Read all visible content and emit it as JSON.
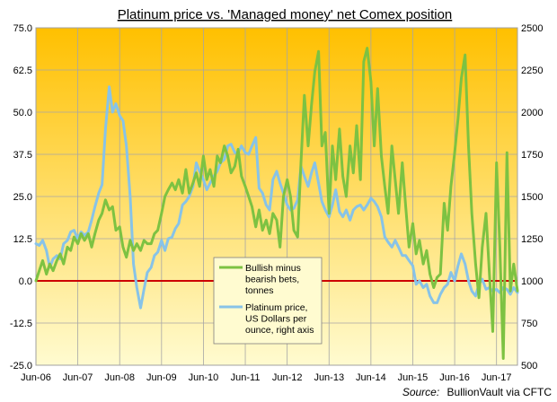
{
  "chart_data": {
    "type": "line",
    "title": "Platinum price vs. 'Managed money' net Comex position",
    "source_label": "Source:",
    "source_text": "BullionVault via CFTC",
    "x_categories": [
      "Jun-06",
      "Jun-07",
      "Jun-08",
      "Jun-09",
      "Jun-10",
      "Jun-11",
      "Jun-12",
      "Jun-13",
      "Jun-14",
      "Jun-15",
      "Jun-16",
      "Jun-17"
    ],
    "x_range": [
      2006.42,
      2017.92
    ],
    "left_axis": {
      "ylim": [
        -25,
        75
      ],
      "ticks": [
        "-25.0",
        "-12.5",
        "0.0",
        "12.5",
        "25.0",
        "37.5",
        "50.0",
        "62.5",
        "75.0"
      ],
      "tick_values": [
        -25,
        -12.5,
        0,
        12.5,
        25,
        37.5,
        50,
        62.5,
        75
      ]
    },
    "right_axis": {
      "ylim": [
        500,
        2500
      ],
      "ticks": [
        "500",
        "750",
        "1000",
        "1250",
        "1500",
        "1750",
        "2000",
        "2250",
        "2500"
      ],
      "tick_values": [
        500,
        750,
        1000,
        1250,
        1500,
        1750,
        2000,
        2250,
        2500
      ]
    },
    "zero_line_color": "#cc0000",
    "grid": true,
    "legend_position": "center-bottom",
    "background_gradient": [
      "#ffc000",
      "#fffbd0"
    ],
    "series": [
      {
        "name": "Bullish minus bearish bets, tonnes",
        "legend_lines": [
          "Bullish minus",
          "bearish bets,",
          "tonnes"
        ],
        "axis": "left",
        "color": "#7dc242",
        "points": [
          [
            2006.42,
            0
          ],
          [
            2006.5,
            3
          ],
          [
            2006.58,
            6
          ],
          [
            2006.67,
            2
          ],
          [
            2006.75,
            5
          ],
          [
            2006.83,
            3
          ],
          [
            2006.92,
            6
          ],
          [
            2007.0,
            8
          ],
          [
            2007.08,
            5
          ],
          [
            2007.17,
            10
          ],
          [
            2007.25,
            9
          ],
          [
            2007.33,
            13
          ],
          [
            2007.42,
            11
          ],
          [
            2007.5,
            14
          ],
          [
            2007.58,
            12
          ],
          [
            2007.67,
            14
          ],
          [
            2007.75,
            10
          ],
          [
            2007.83,
            14
          ],
          [
            2007.92,
            18
          ],
          [
            2008.0,
            20
          ],
          [
            2008.08,
            24
          ],
          [
            2008.17,
            21
          ],
          [
            2008.25,
            22
          ],
          [
            2008.33,
            15
          ],
          [
            2008.42,
            16
          ],
          [
            2008.5,
            10
          ],
          [
            2008.58,
            7
          ],
          [
            2008.67,
            12
          ],
          [
            2008.75,
            9
          ],
          [
            2008.83,
            11
          ],
          [
            2008.92,
            9
          ],
          [
            2009.0,
            12
          ],
          [
            2009.08,
            11
          ],
          [
            2009.17,
            11
          ],
          [
            2009.25,
            14
          ],
          [
            2009.33,
            15
          ],
          [
            2009.42,
            20
          ],
          [
            2009.5,
            25
          ],
          [
            2009.58,
            27
          ],
          [
            2009.67,
            29
          ],
          [
            2009.75,
            27
          ],
          [
            2009.83,
            30
          ],
          [
            2009.92,
            26
          ],
          [
            2010.0,
            33
          ],
          [
            2010.08,
            26
          ],
          [
            2010.17,
            29
          ],
          [
            2010.25,
            32
          ],
          [
            2010.33,
            28
          ],
          [
            2010.42,
            37
          ],
          [
            2010.5,
            30
          ],
          [
            2010.58,
            33
          ],
          [
            2010.67,
            28
          ],
          [
            2010.75,
            37
          ],
          [
            2010.83,
            35
          ],
          [
            2010.92,
            40
          ],
          [
            2011.0,
            37
          ],
          [
            2011.08,
            32
          ],
          [
            2011.17,
            34
          ],
          [
            2011.25,
            39
          ],
          [
            2011.33,
            31
          ],
          [
            2011.42,
            28
          ],
          [
            2011.5,
            25
          ],
          [
            2011.58,
            22
          ],
          [
            2011.67,
            16
          ],
          [
            2011.75,
            21
          ],
          [
            2011.83,
            15
          ],
          [
            2011.92,
            18
          ],
          [
            2012.0,
            14
          ],
          [
            2012.08,
            20
          ],
          [
            2012.17,
            18
          ],
          [
            2012.25,
            10
          ],
          [
            2012.33,
            25
          ],
          [
            2012.42,
            30
          ],
          [
            2012.5,
            25
          ],
          [
            2012.58,
            15
          ],
          [
            2012.67,
            13
          ],
          [
            2012.75,
            35
          ],
          [
            2012.83,
            55
          ],
          [
            2012.92,
            40
          ],
          [
            2013.0,
            52
          ],
          [
            2013.08,
            62
          ],
          [
            2013.17,
            68
          ],
          [
            2013.25,
            40
          ],
          [
            2013.33,
            44
          ],
          [
            2013.42,
            20
          ],
          [
            2013.5,
            40
          ],
          [
            2013.58,
            30
          ],
          [
            2013.67,
            45
          ],
          [
            2013.75,
            31
          ],
          [
            2013.83,
            25
          ],
          [
            2013.92,
            40
          ],
          [
            2014.0,
            32
          ],
          [
            2014.08,
            46
          ],
          [
            2014.17,
            30
          ],
          [
            2014.25,
            65
          ],
          [
            2014.33,
            69
          ],
          [
            2014.42,
            59
          ],
          [
            2014.5,
            40
          ],
          [
            2014.58,
            57
          ],
          [
            2014.67,
            37
          ],
          [
            2014.75,
            28
          ],
          [
            2014.83,
            20
          ],
          [
            2014.92,
            40
          ],
          [
            2015.0,
            30
          ],
          [
            2015.08,
            20
          ],
          [
            2015.17,
            35
          ],
          [
            2015.25,
            22
          ],
          [
            2015.33,
            10
          ],
          [
            2015.42,
            17
          ],
          [
            2015.5,
            8
          ],
          [
            2015.58,
            12
          ],
          [
            2015.67,
            5
          ],
          [
            2015.75,
            9
          ],
          [
            2015.83,
            2
          ],
          [
            2015.92,
            -2
          ],
          [
            2016.0,
            1
          ],
          [
            2016.08,
            2
          ],
          [
            2016.17,
            23
          ],
          [
            2016.25,
            15
          ],
          [
            2016.33,
            28
          ],
          [
            2016.42,
            38
          ],
          [
            2016.5,
            48
          ],
          [
            2016.58,
            60
          ],
          [
            2016.67,
            67
          ],
          [
            2016.75,
            40
          ],
          [
            2016.83,
            20
          ],
          [
            2016.92,
            5
          ],
          [
            2017.0,
            -5
          ],
          [
            2017.08,
            10
          ],
          [
            2017.17,
            20
          ],
          [
            2017.25,
            2
          ],
          [
            2017.33,
            -15
          ],
          [
            2017.42,
            35
          ],
          [
            2017.5,
            10
          ],
          [
            2017.58,
            -23
          ],
          [
            2017.67,
            38
          ],
          [
            2017.75,
            -3
          ],
          [
            2017.83,
            5
          ],
          [
            2017.92,
            -3
          ]
        ]
      },
      {
        "name": "Platinum price, US Dollars per ounce, right axis",
        "legend_lines": [
          "Platinum price,",
          "US Dollars per",
          "ounce, right axis"
        ],
        "axis": "right",
        "color": "#87c3e8",
        "points": [
          [
            2006.42,
            1220
          ],
          [
            2006.5,
            1210
          ],
          [
            2006.58,
            1240
          ],
          [
            2006.67,
            1180
          ],
          [
            2006.75,
            1080
          ],
          [
            2006.83,
            1130
          ],
          [
            2006.92,
            1150
          ],
          [
            2007.0,
            1130
          ],
          [
            2007.08,
            1220
          ],
          [
            2007.17,
            1240
          ],
          [
            2007.25,
            1290
          ],
          [
            2007.33,
            1300
          ],
          [
            2007.42,
            1250
          ],
          [
            2007.5,
            1290
          ],
          [
            2007.58,
            1270
          ],
          [
            2007.67,
            1290
          ],
          [
            2007.75,
            1360
          ],
          [
            2007.83,
            1440
          ],
          [
            2007.92,
            1520
          ],
          [
            2008.0,
            1570
          ],
          [
            2008.08,
            1900
          ],
          [
            2008.17,
            2150
          ],
          [
            2008.25,
            2000
          ],
          [
            2008.33,
            2050
          ],
          [
            2008.42,
            1980
          ],
          [
            2008.5,
            1950
          ],
          [
            2008.58,
            1800
          ],
          [
            2008.67,
            1500
          ],
          [
            2008.75,
            1100
          ],
          [
            2008.83,
            960
          ],
          [
            2008.92,
            840
          ],
          [
            2009.0,
            950
          ],
          [
            2009.08,
            1050
          ],
          [
            2009.17,
            1080
          ],
          [
            2009.25,
            1150
          ],
          [
            2009.33,
            1170
          ],
          [
            2009.42,
            1240
          ],
          [
            2009.5,
            1180
          ],
          [
            2009.58,
            1250
          ],
          [
            2009.67,
            1260
          ],
          [
            2009.75,
            1310
          ],
          [
            2009.83,
            1340
          ],
          [
            2009.92,
            1450
          ],
          [
            2010.0,
            1470
          ],
          [
            2010.08,
            1500
          ],
          [
            2010.17,
            1560
          ],
          [
            2010.25,
            1700
          ],
          [
            2010.33,
            1650
          ],
          [
            2010.42,
            1600
          ],
          [
            2010.5,
            1540
          ],
          [
            2010.58,
            1580
          ],
          [
            2010.67,
            1620
          ],
          [
            2010.75,
            1650
          ],
          [
            2010.83,
            1700
          ],
          [
            2010.92,
            1720
          ],
          [
            2011.0,
            1800
          ],
          [
            2011.08,
            1810
          ],
          [
            2011.17,
            1760
          ],
          [
            2011.25,
            1760
          ],
          [
            2011.33,
            1800
          ],
          [
            2011.42,
            1760
          ],
          [
            2011.5,
            1750
          ],
          [
            2011.58,
            1800
          ],
          [
            2011.67,
            1850
          ],
          [
            2011.75,
            1550
          ],
          [
            2011.83,
            1520
          ],
          [
            2011.92,
            1450
          ],
          [
            2012.0,
            1420
          ],
          [
            2012.08,
            1600
          ],
          [
            2012.17,
            1650
          ],
          [
            2012.25,
            1580
          ],
          [
            2012.33,
            1520
          ],
          [
            2012.42,
            1450
          ],
          [
            2012.5,
            1420
          ],
          [
            2012.58,
            1430
          ],
          [
            2012.67,
            1480
          ],
          [
            2012.75,
            1680
          ],
          [
            2012.83,
            1620
          ],
          [
            2012.92,
            1560
          ],
          [
            2013.0,
            1640
          ],
          [
            2013.08,
            1700
          ],
          [
            2013.17,
            1580
          ],
          [
            2013.25,
            1470
          ],
          [
            2013.33,
            1420
          ],
          [
            2013.42,
            1380
          ],
          [
            2013.5,
            1450
          ],
          [
            2013.58,
            1540
          ],
          [
            2013.67,
            1410
          ],
          [
            2013.75,
            1380
          ],
          [
            2013.83,
            1420
          ],
          [
            2013.92,
            1360
          ],
          [
            2014.0,
            1420
          ],
          [
            2014.08,
            1440
          ],
          [
            2014.17,
            1450
          ],
          [
            2014.25,
            1420
          ],
          [
            2014.33,
            1450
          ],
          [
            2014.42,
            1490
          ],
          [
            2014.5,
            1470
          ],
          [
            2014.58,
            1440
          ],
          [
            2014.67,
            1380
          ],
          [
            2014.75,
            1260
          ],
          [
            2014.83,
            1230
          ],
          [
            2014.92,
            1200
          ],
          [
            2015.0,
            1240
          ],
          [
            2015.08,
            1200
          ],
          [
            2015.17,
            1150
          ],
          [
            2015.25,
            1150
          ],
          [
            2015.33,
            1120
          ],
          [
            2015.42,
            1090
          ],
          [
            2015.5,
            980
          ],
          [
            2015.58,
            1000
          ],
          [
            2015.67,
            960
          ],
          [
            2015.75,
            980
          ],
          [
            2015.83,
            910
          ],
          [
            2015.92,
            870
          ],
          [
            2016.0,
            870
          ],
          [
            2016.08,
            920
          ],
          [
            2016.17,
            960
          ],
          [
            2016.25,
            980
          ],
          [
            2016.33,
            1050
          ],
          [
            2016.42,
            1000
          ],
          [
            2016.5,
            1090
          ],
          [
            2016.58,
            1160
          ],
          [
            2016.67,
            1100
          ],
          [
            2016.75,
            1000
          ],
          [
            2016.83,
            940
          ],
          [
            2016.92,
            910
          ],
          [
            2017.0,
            980
          ],
          [
            2017.08,
            1010
          ],
          [
            2017.17,
            950
          ],
          [
            2017.25,
            960
          ],
          [
            2017.33,
            940
          ],
          [
            2017.42,
            950
          ],
          [
            2017.5,
            930
          ],
          [
            2017.58,
            960
          ],
          [
            2017.67,
            950
          ],
          [
            2017.75,
            920
          ],
          [
            2017.83,
            960
          ],
          [
            2017.92,
            930
          ]
        ]
      }
    ]
  }
}
